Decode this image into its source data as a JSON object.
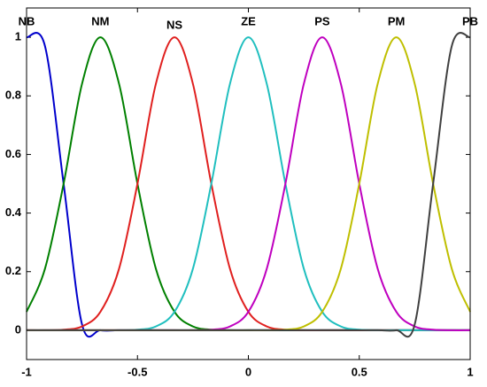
{
  "chart_data": {
    "type": "line",
    "x": [
      -1,
      -0.917,
      -0.833,
      -0.75,
      -0.667,
      -0.583,
      -0.5,
      -0.417,
      -0.333,
      -0.25,
      -0.167,
      -0.083,
      0,
      0.083,
      0.167,
      0.25,
      0.333,
      0.417,
      0.5,
      0.583,
      0.667,
      0.75,
      0.833,
      0.917,
      1
    ],
    "series": [
      {
        "name": "NB",
        "color": "#0000cc",
        "values": [
          1,
          0.97,
          0.5,
          0.02,
          0,
          0,
          0,
          0,
          0,
          0,
          0,
          0,
          0,
          0,
          0,
          0,
          0,
          0,
          0,
          0,
          0,
          0,
          0,
          0,
          0
        ]
      },
      {
        "name": "NM",
        "color": "#008000",
        "values": [
          0.063,
          0.21,
          0.5,
          0.841,
          1,
          0.841,
          0.5,
          0.21,
          0.063,
          0.013,
          0.002,
          0,
          0,
          0,
          0,
          0,
          0,
          0,
          0,
          0,
          0,
          0,
          0,
          0,
          0
        ]
      },
      {
        "name": "NS",
        "color": "#e0201f",
        "values": [
          0,
          0,
          0.002,
          0.013,
          0.063,
          0.21,
          0.5,
          0.841,
          1,
          0.841,
          0.5,
          0.21,
          0.063,
          0.013,
          0.002,
          0,
          0,
          0,
          0,
          0,
          0,
          0,
          0,
          0,
          0
        ]
      },
      {
        "name": "ZE",
        "color": "#20bfbf",
        "values": [
          0,
          0,
          0,
          0,
          0,
          0,
          0.002,
          0.013,
          0.063,
          0.21,
          0.5,
          0.841,
          1,
          0.841,
          0.5,
          0.21,
          0.063,
          0.013,
          0.002,
          0,
          0,
          0,
          0,
          0,
          0
        ]
      },
      {
        "name": "PS",
        "color": "#bf00bf",
        "values": [
          0,
          0,
          0,
          0,
          0,
          0,
          0,
          0,
          0,
          0,
          0.002,
          0.013,
          0.063,
          0.21,
          0.5,
          0.841,
          1,
          0.841,
          0.5,
          0.21,
          0.063,
          0.013,
          0.002,
          0,
          0
        ]
      },
      {
        "name": "PM",
        "color": "#bfbf00",
        "values": [
          0,
          0,
          0,
          0,
          0,
          0,
          0,
          0,
          0,
          0,
          0,
          0,
          0,
          0,
          0.002,
          0.013,
          0.063,
          0.21,
          0.5,
          0.841,
          1,
          0.841,
          0.5,
          0.21,
          0.063
        ]
      },
      {
        "name": "PB",
        "color": "#404040",
        "values": [
          0,
          0,
          0,
          0,
          0,
          0,
          0,
          0,
          0,
          0,
          0,
          0,
          0,
          0,
          0,
          0,
          0,
          0,
          0,
          0,
          0,
          0.02,
          0.5,
          0.97,
          1
        ]
      }
    ],
    "xlim": [
      -1,
      1
    ],
    "ylim": [
      -0.1,
      1.1
    ],
    "xticks": [
      -1,
      -0.5,
      0,
      0.5,
      1
    ],
    "yticks": [
      0,
      0.2,
      0.4,
      0.6,
      0.8,
      1
    ],
    "grid": false
  }
}
